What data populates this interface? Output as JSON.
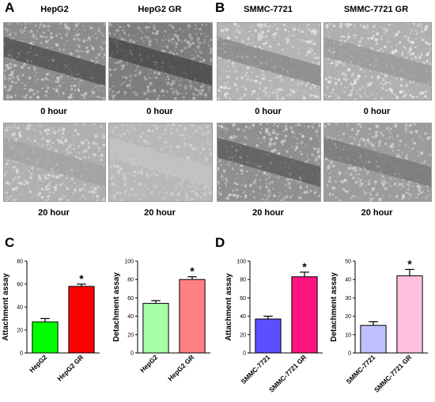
{
  "panels": {
    "a": {
      "letter": "A",
      "columns": [
        "HepG2",
        "HepG2 GR"
      ]
    },
    "b": {
      "letter": "B",
      "columns": [
        "SMMC-7721",
        "SMMC-7721 GR"
      ]
    },
    "c": {
      "letter": "C"
    },
    "d": {
      "letter": "D"
    }
  },
  "row_labels": {
    "top": "0 hour",
    "bottom": "20 hour"
  },
  "micrographs": [
    {
      "id": "hepg2-0h",
      "bg": "#8c8c8c",
      "cell": "#c9c9c9",
      "gap": "#525252"
    },
    {
      "id": "hepg2gr-0h",
      "bg": "#7d7d7d",
      "cell": "#b8b8b8",
      "gap": "#4a4a4a"
    },
    {
      "id": "smmc-0h",
      "bg": "#b4b4b4",
      "cell": "#e2e2e2",
      "gap": "#8a8a8a"
    },
    {
      "id": "smmcgr-0h",
      "bg": "#b0b0b0",
      "cell": "#e6e6e6",
      "gap": "#9a9a9a"
    },
    {
      "id": "hepg2-20h",
      "bg": "#b0b0b0",
      "cell": "#dcdcdc",
      "gap": "#a2a2a2"
    },
    {
      "id": "hepg2gr-20h",
      "bg": "#b8b8b8",
      "cell": "#d4d4d4",
      "gap": "#c2c2c2"
    },
    {
      "id": "smmc-20h",
      "bg": "#8f8f8f",
      "cell": "#cfcfcf",
      "gap": "#5e5e5e"
    },
    {
      "id": "smmcgr-20h",
      "bg": "#9c9c9c",
      "cell": "#d2d2d2",
      "gap": "#7a7a7a"
    }
  ],
  "chart_data": [
    {
      "type": "bar",
      "ylabel": "Attachment assay",
      "ylim": [
        0,
        80
      ],
      "yticks": [
        0,
        20,
        40,
        60,
        80
      ],
      "categories": [
        "HepG2",
        "HepG2 GR"
      ],
      "values": [
        27,
        58
      ],
      "errors": [
        3,
        2
      ],
      "colors": [
        "#00ff00",
        "#ff0000"
      ],
      "significance": [
        "",
        "*"
      ]
    },
    {
      "type": "bar",
      "ylabel": "Detachment assay",
      "ylim": [
        0,
        100
      ],
      "yticks": [
        0,
        20,
        40,
        60,
        80,
        100
      ],
      "categories": [
        "HepG2",
        "HepG2 GR"
      ],
      "values": [
        54,
        80
      ],
      "errors": [
        3,
        3
      ],
      "colors": [
        "#a6ffa6",
        "#ff8080"
      ],
      "significance": [
        "",
        "*"
      ]
    },
    {
      "type": "bar",
      "ylabel": "Attachment assay",
      "ylim": [
        0,
        100
      ],
      "yticks": [
        0,
        20,
        40,
        60,
        80,
        100
      ],
      "categories": [
        "SMMC-7721",
        "SMMC-7721 GR"
      ],
      "values": [
        37,
        83
      ],
      "errors": [
        3,
        5
      ],
      "colors": [
        "#5a50ff",
        "#ff1480"
      ],
      "significance": [
        "",
        "*"
      ]
    },
    {
      "type": "bar",
      "ylabel": "Detachment assay",
      "ylim": [
        0,
        50
      ],
      "yticks": [
        0,
        10,
        20,
        30,
        40,
        50
      ],
      "categories": [
        "SMMC-7721",
        "SMMC-7721 GR"
      ],
      "values": [
        15,
        42
      ],
      "errors": [
        2,
        3.5
      ],
      "colors": [
        "#c0c0ff",
        "#ffc0e0"
      ],
      "significance": [
        "",
        "*"
      ]
    }
  ]
}
